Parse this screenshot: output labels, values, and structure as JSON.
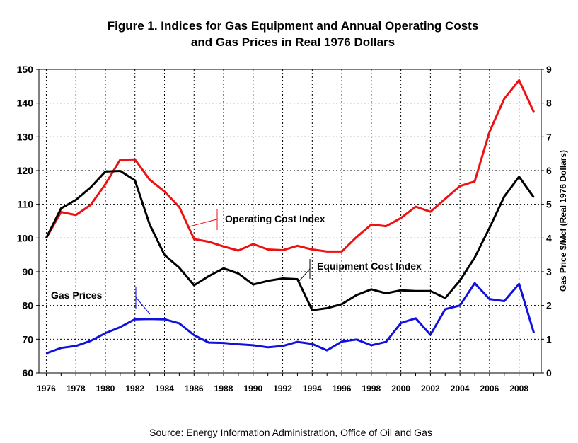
{
  "chart_data": {
    "type": "line",
    "title_line1": "Figure 1. Indices for Gas Equipment and Annual Operating Costs",
    "title_line2": "and Gas Prices in Real 1976 Dollars",
    "y2label": "Gas Price $/Mcf (Real 1976 Dollars)",
    "source": "Source: Energy Information Administration, Office of Oil and Gas",
    "x": [
      1976,
      1977,
      1978,
      1979,
      1980,
      1981,
      1982,
      1983,
      1984,
      1985,
      1986,
      1987,
      1988,
      1989,
      1990,
      1991,
      1992,
      1993,
      1994,
      1995,
      1996,
      1997,
      1998,
      1999,
      2000,
      2001,
      2002,
      2003,
      2004,
      2005,
      2006,
      2007,
      2008,
      2009
    ],
    "x_tick_labels": [
      "1976",
      "1978",
      "1980",
      "1982",
      "1984",
      "1986",
      "1988",
      "1990",
      "1992",
      "1994",
      "1996",
      "1998",
      "2000",
      "2002",
      "2004",
      "2006",
      "2008"
    ],
    "ylim": [
      60,
      150
    ],
    "y_ticks": [
      "60",
      "70",
      "80",
      "90",
      "100",
      "110",
      "120",
      "130",
      "140",
      "150"
    ],
    "y2lim": [
      0,
      9
    ],
    "y2_ticks": [
      "0",
      "1",
      "2",
      "3",
      "4",
      "5",
      "6",
      "7",
      "8",
      "9"
    ],
    "grid": true,
    "series": [
      {
        "name": "Operating Cost Index",
        "axis": "left",
        "color": "#ee1111",
        "values": [
          100,
          107.7,
          106.8,
          109.8,
          116,
          123.2,
          123.3,
          117.3,
          113.8,
          109.2,
          99.7,
          98.9,
          97.5,
          96.3,
          98.2,
          96.6,
          96.4,
          97.7,
          96.6,
          96,
          96,
          100.3,
          104,
          103.5,
          105.9,
          109.3,
          107.8,
          111.6,
          115.4,
          116.8,
          131.5,
          141.3,
          146.8,
          137.3
        ]
      },
      {
        "name": "Equipment Cost Index",
        "axis": "left",
        "color": "#000000",
        "values": [
          100,
          108.8,
          111.3,
          115,
          119.7,
          119.9,
          117.1,
          104,
          95,
          91.2,
          86,
          88.7,
          91,
          89.5,
          86.2,
          87.3,
          88,
          87.8,
          78.6,
          79.2,
          80.4,
          83.1,
          84.8,
          83.6,
          84.5,
          84.3,
          84.3,
          82.2,
          87.4,
          94.2,
          103,
          112.3,
          118.2,
          112
        ]
      },
      {
        "name": "Gas Prices",
        "axis": "right",
        "color": "#1111dd",
        "values": [
          0.58,
          0.74,
          0.8,
          0.95,
          1.18,
          1.36,
          1.59,
          1.6,
          1.59,
          1.47,
          1.12,
          0.9,
          0.89,
          0.85,
          0.82,
          0.76,
          0.8,
          0.92,
          0.86,
          0.67,
          0.93,
          0.99,
          0.82,
          0.92,
          1.48,
          1.62,
          1.13,
          1.89,
          2.0,
          2.66,
          2.19,
          2.13,
          2.64,
          1.19
        ]
      }
    ],
    "annotations": [
      {
        "text": "Operating Cost Index"
      },
      {
        "text": "Equipment Cost Index"
      },
      {
        "text": "Gas Prices"
      }
    ]
  }
}
